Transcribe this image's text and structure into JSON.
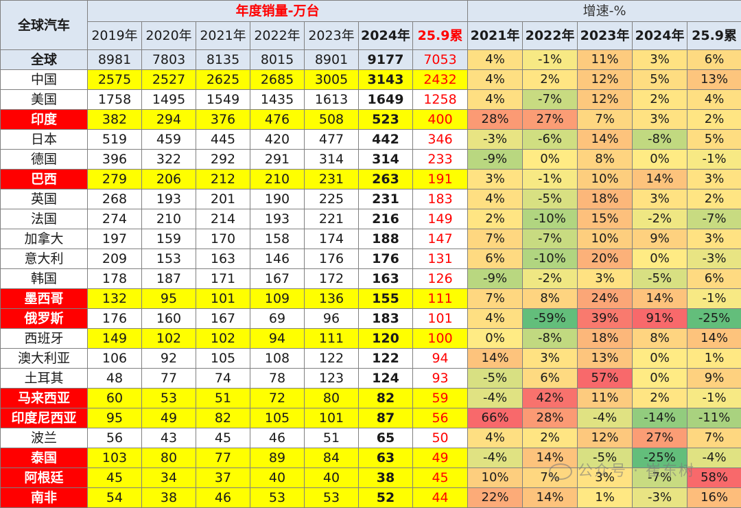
{
  "table": {
    "corner_label": "全球汽车",
    "sales_group_label": "年度销量-万台",
    "growth_group_label": "增速-%",
    "sales_years": [
      "2019年",
      "2020年",
      "2021年",
      "2022年",
      "2023年",
      "2024年",
      "25.9累"
    ],
    "growth_years": [
      "2021年",
      "2022年",
      "2023年",
      "2024年",
      "25.9累"
    ],
    "rows": [
      {
        "name": "全球",
        "name_style": "blue",
        "row_style": "blue",
        "sales": [
          "8981",
          "7803",
          "8135",
          "8015",
          "8901",
          "9177",
          "7053"
        ],
        "growth": [
          "4%",
          "-1%",
          "11%",
          "3%",
          "6%"
        ]
      },
      {
        "name": "中国",
        "name_style": "none",
        "row_style": "yellow",
        "sales": [
          "2575",
          "2527",
          "2625",
          "2685",
          "3005",
          "3143",
          "2432"
        ],
        "growth": [
          "4%",
          "2%",
          "12%",
          "5%",
          "13%"
        ]
      },
      {
        "name": "美国",
        "name_style": "none",
        "row_style": "none",
        "sales": [
          "1758",
          "1495",
          "1549",
          "1435",
          "1613",
          "1649",
          "1258"
        ],
        "growth": [
          "4%",
          "-7%",
          "12%",
          "2%",
          "4%"
        ]
      },
      {
        "name": "印度",
        "name_style": "red",
        "row_style": "yellow",
        "sales": [
          "382",
          "294",
          "376",
          "476",
          "508",
          "523",
          "400"
        ],
        "growth": [
          "28%",
          "27%",
          "7%",
          "3%",
          "2%"
        ]
      },
      {
        "name": "日本",
        "name_style": "none",
        "row_style": "none",
        "sales": [
          "519",
          "459",
          "445",
          "420",
          "477",
          "442",
          "346"
        ],
        "growth": [
          "-3%",
          "-6%",
          "14%",
          "-8%",
          "5%"
        ]
      },
      {
        "name": "德国",
        "name_style": "none",
        "row_style": "none",
        "sales": [
          "396",
          "322",
          "292",
          "291",
          "314",
          "314",
          "233"
        ],
        "growth": [
          "-9%",
          "0%",
          "8%",
          "0%",
          "-1%"
        ]
      },
      {
        "name": "巴西",
        "name_style": "red",
        "row_style": "yellow",
        "sales": [
          "279",
          "206",
          "212",
          "210",
          "231",
          "263",
          "191"
        ],
        "growth": [
          "3%",
          "-1%",
          "10%",
          "14%",
          "3%"
        ]
      },
      {
        "name": "英国",
        "name_style": "none",
        "row_style": "none",
        "sales": [
          "268",
          "193",
          "201",
          "190",
          "225",
          "231",
          "183"
        ],
        "growth": [
          "4%",
          "-5%",
          "18%",
          "3%",
          "2%"
        ]
      },
      {
        "name": "法国",
        "name_style": "none",
        "row_style": "none",
        "sales": [
          "274",
          "210",
          "214",
          "193",
          "221",
          "216",
          "149"
        ],
        "growth": [
          "2%",
          "-10%",
          "15%",
          "-2%",
          "-7%"
        ]
      },
      {
        "name": "加拿大",
        "name_style": "none",
        "row_style": "none",
        "sales": [
          "197",
          "159",
          "170",
          "158",
          "174",
          "188",
          "147"
        ],
        "growth": [
          "7%",
          "-7%",
          "10%",
          "9%",
          "3%"
        ]
      },
      {
        "name": "意大利",
        "name_style": "none",
        "row_style": "none",
        "sales": [
          "209",
          "153",
          "163",
          "146",
          "176",
          "176",
          "131"
        ],
        "growth": [
          "6%",
          "-10%",
          "20%",
          "0%",
          "-3%"
        ]
      },
      {
        "name": "韩国",
        "name_style": "none",
        "row_style": "none",
        "sales": [
          "178",
          "187",
          "171",
          "167",
          "172",
          "163",
          "126"
        ],
        "growth": [
          "-9%",
          "-2%",
          "3%",
          "-5%",
          "6%"
        ]
      },
      {
        "name": "墨西哥",
        "name_style": "red",
        "row_style": "yellow",
        "sales": [
          "132",
          "95",
          "101",
          "109",
          "136",
          "155",
          "111"
        ],
        "growth": [
          "7%",
          "8%",
          "24%",
          "14%",
          "-1%"
        ]
      },
      {
        "name": "俄罗斯",
        "name_style": "red",
        "row_style": "none",
        "sales": [
          "176",
          "160",
          "167",
          "69",
          "96",
          "183",
          "101"
        ],
        "growth": [
          "4%",
          "-59%",
          "39%",
          "91%",
          "-25%"
        ]
      },
      {
        "name": "西班牙",
        "name_style": "none",
        "row_style": "yellow",
        "sales": [
          "149",
          "102",
          "102",
          "94",
          "111",
          "120",
          "100"
        ],
        "growth": [
          "0%",
          "-8%",
          "18%",
          "8%",
          "14%"
        ]
      },
      {
        "name": "澳大利亚",
        "name_style": "none",
        "row_style": "none",
        "sales": [
          "106",
          "92",
          "105",
          "108",
          "122",
          "122",
          "94"
        ],
        "growth": [
          "14%",
          "3%",
          "13%",
          "0%",
          "1%"
        ]
      },
      {
        "name": "土耳其",
        "name_style": "none",
        "row_style": "none",
        "sales": [
          "48",
          "77",
          "74",
          "78",
          "123",
          "124",
          "93"
        ],
        "growth": [
          "-5%",
          "6%",
          "57%",
          "0%",
          "9%"
        ]
      },
      {
        "name": "马来西亚",
        "name_style": "red",
        "row_style": "yellow",
        "sales": [
          "60",
          "53",
          "51",
          "72",
          "80",
          "82",
          "59"
        ],
        "growth": [
          "-4%",
          "42%",
          "11%",
          "2%",
          "-1%"
        ]
      },
      {
        "name": "印度尼西亚",
        "name_style": "red",
        "row_style": "yellow",
        "sales": [
          "95",
          "49",
          "82",
          "105",
          "101",
          "87",
          "56"
        ],
        "growth": [
          "66%",
          "28%",
          "-4%",
          "-14%",
          "-11%"
        ]
      },
      {
        "name": "波兰",
        "name_style": "none",
        "row_style": "none",
        "sales": [
          "56",
          "43",
          "45",
          "46",
          "51",
          "65",
          "50"
        ],
        "growth": [
          "4%",
          "2%",
          "12%",
          "27%",
          "7%"
        ]
      },
      {
        "name": "泰国",
        "name_style": "red",
        "row_style": "yellow",
        "sales": [
          "103",
          "80",
          "77",
          "89",
          "84",
          "63",
          "49"
        ],
        "growth": [
          "-4%",
          "14%",
          "-5%",
          "-25%",
          "-4%"
        ]
      },
      {
        "name": "阿根廷",
        "name_style": "red",
        "row_style": "yellow",
        "sales": [
          "45",
          "34",
          "37",
          "40",
          "40",
          "38",
          "45"
        ],
        "growth": [
          "10%",
          "7%",
          "3%",
          "-7%",
          "58%"
        ]
      },
      {
        "name": "南非",
        "name_style": "red",
        "row_style": "yellow",
        "sales": [
          "54",
          "38",
          "46",
          "53",
          "53",
          "52",
          "44"
        ],
        "growth": [
          "22%",
          "14%",
          "1%",
          "-3%",
          "16%"
        ]
      }
    ]
  },
  "watermark": "公众号 · 崔东树",
  "heat_colors": {
    "strong_neg": "#63be7b",
    "zero": "#ffeb84",
    "strong_pos": "#f8696b"
  }
}
